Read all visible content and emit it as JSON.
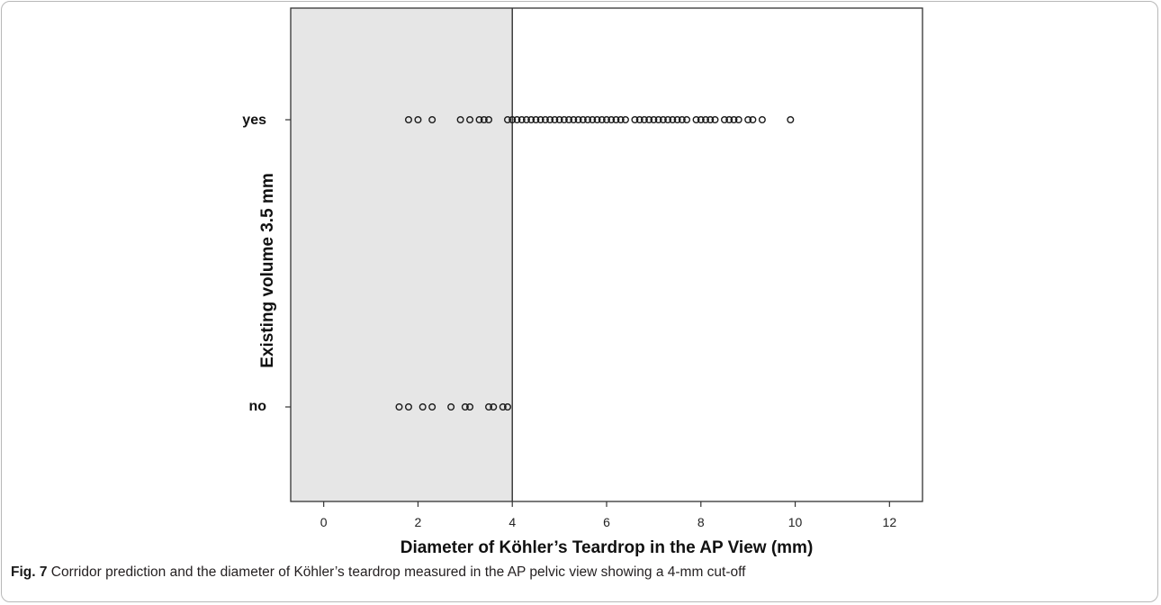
{
  "figure": {
    "caption_label": "Fig. 7",
    "caption_text": " Corridor prediction and the diameter of Köhler’s teardrop measured in the AP pelvic view showing a 4-mm cut-off"
  },
  "chart_data": {
    "type": "scatter",
    "xlabel": "Diameter of Köhler’s Teardrop in the AP View  (mm)",
    "ylabel": "Existing volume 3.5 mm",
    "xlim": [
      -0.7,
      12.7
    ],
    "xticks": [
      0,
      2,
      4,
      6,
      8,
      10,
      12
    ],
    "categories": [
      "yes",
      "no"
    ],
    "cutoff": 4,
    "shaded_region": [
      -0.7,
      4
    ],
    "shade_color": "#e6e6e6",
    "marker_color": "#1a1a1a",
    "grid": false,
    "series": [
      {
        "category": "yes",
        "x": [
          1.8,
          2.0,
          2.3,
          2.9,
          3.1,
          3.3,
          3.4,
          3.5,
          3.9,
          4.0,
          4.1,
          4.2,
          4.3,
          4.4,
          4.5,
          4.6,
          4.7,
          4.8,
          4.9,
          5.0,
          5.1,
          5.2,
          5.3,
          5.4,
          5.5,
          5.6,
          5.7,
          5.8,
          5.9,
          6.0,
          6.1,
          6.2,
          6.3,
          6.4,
          6.6,
          6.7,
          6.8,
          6.9,
          7.0,
          7.1,
          7.2,
          7.3,
          7.4,
          7.5,
          7.6,
          7.7,
          7.9,
          8.0,
          8.1,
          8.2,
          8.3,
          8.5,
          8.6,
          8.7,
          8.8,
          9.0,
          9.1,
          9.3,
          9.9
        ]
      },
      {
        "category": "no",
        "x": [
          1.6,
          1.8,
          2.1,
          2.3,
          2.7,
          3.0,
          3.1,
          3.5,
          3.6,
          3.8,
          3.9
        ]
      }
    ]
  }
}
